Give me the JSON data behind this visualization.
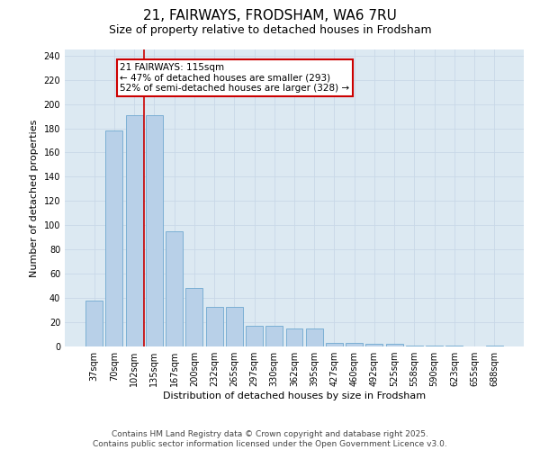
{
  "title": "21, FAIRWAYS, FRODSHAM, WA6 7RU",
  "subtitle": "Size of property relative to detached houses in Frodsham",
  "xlabel": "Distribution of detached houses by size in Frodsham",
  "ylabel": "Number of detached properties",
  "categories": [
    "37sqm",
    "70sqm",
    "102sqm",
    "135sqm",
    "167sqm",
    "200sqm",
    "232sqm",
    "265sqm",
    "297sqm",
    "330sqm",
    "362sqm",
    "395sqm",
    "427sqm",
    "460sqm",
    "492sqm",
    "525sqm",
    "558sqm",
    "590sqm",
    "623sqm",
    "655sqm",
    "688sqm"
  ],
  "values": [
    38,
    178,
    191,
    191,
    95,
    48,
    33,
    33,
    17,
    17,
    15,
    15,
    3,
    3,
    2,
    2,
    1,
    1,
    1,
    0,
    1
  ],
  "bar_color": "#b8d0e8",
  "bar_edgecolor": "#6fa8d0",
  "redline_x": 2.5,
  "annotation_line1": "21 FAIRWAYS: 115sqm",
  "annotation_line2": "← 47% of detached houses are smaller (293)",
  "annotation_line3": "52% of semi-detached houses are larger (328) →",
  "annotation_box_color": "#ffffff",
  "annotation_box_edgecolor": "#cc0000",
  "redline_color": "#cc0000",
  "ylim": [
    0,
    245
  ],
  "yticks": [
    0,
    20,
    40,
    60,
    80,
    100,
    120,
    140,
    160,
    180,
    200,
    220,
    240
  ],
  "grid_color": "#c8d8e8",
  "background_color": "#dce9f2",
  "footer_line1": "Contains HM Land Registry data © Crown copyright and database right 2025.",
  "footer_line2": "Contains public sector information licensed under the Open Government Licence v3.0.",
  "title_fontsize": 11,
  "subtitle_fontsize": 9,
  "xlabel_fontsize": 8,
  "ylabel_fontsize": 8,
  "tick_fontsize": 7,
  "annotation_fontsize": 7.5,
  "footer_fontsize": 6.5
}
